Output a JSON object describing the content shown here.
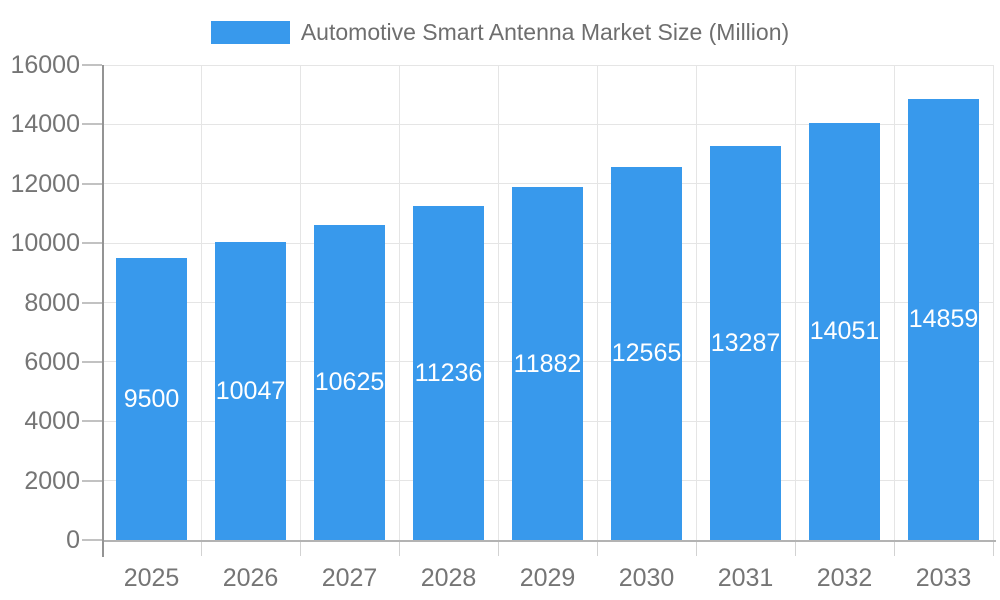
{
  "chart_data": {
    "type": "bar",
    "title": "Automotive Smart Antenna Market Size (Million)",
    "categories": [
      "2025",
      "2026",
      "2027",
      "2028",
      "2029",
      "2030",
      "2031",
      "2032",
      "2033"
    ],
    "values": [
      9500,
      10047,
      10625,
      11236,
      11882,
      12565,
      13287,
      14051,
      14859
    ],
    "xlabel": "",
    "ylabel": "",
    "ylim": [
      0,
      16000
    ],
    "ytick_step": 2000,
    "ytick_labels": [
      "0",
      "2000",
      "4000",
      "6000",
      "8000",
      "10000",
      "12000",
      "14000",
      "16000"
    ],
    "grid": true,
    "legend_position": "top",
    "colors": {
      "bar": "#3899EC",
      "value_label": "#FFFFFF",
      "axis_label": "#757575",
      "title": "#6E6E6E",
      "gridline": "#E5E5E5"
    }
  }
}
